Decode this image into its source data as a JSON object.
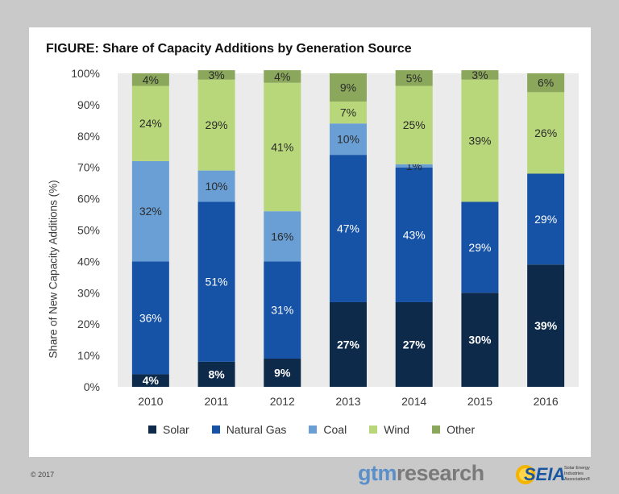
{
  "title": "FIGURE: Share of Capacity Additions by Generation Source",
  "copyright": "© 2017",
  "logos": {
    "gtm_part1": "gtm",
    "gtm_part2": "research",
    "seia": "SEIA",
    "seia_sub": "Solar Energy Industries Association®"
  },
  "colors": {
    "Solar": "#0e2a4a",
    "Natural Gas": "#1653a7",
    "Coal": "#6a9fd5",
    "Wind": "#b8d77a",
    "Other": "#8aa75c"
  },
  "chart_data": {
    "type": "bar",
    "stacked": true,
    "title": "FIGURE: Share of Capacity Additions by Generation Source",
    "xlabel": "",
    "ylabel": "Share of New Capacity Additions (%)",
    "ylim": [
      0,
      100
    ],
    "yticks": [
      "0%",
      "10%",
      "20%",
      "30%",
      "40%",
      "50%",
      "60%",
      "70%",
      "80%",
      "90%",
      "100%"
    ],
    "categories": [
      "2010",
      "2011",
      "2012",
      "2013",
      "2014",
      "2015",
      "2016"
    ],
    "legend_position": "bottom",
    "series": [
      {
        "name": "Solar",
        "values": [
          4,
          8,
          9,
          27,
          27,
          30,
          39
        ],
        "labels": [
          "4%",
          "8%",
          "9%",
          "27%",
          "27%",
          "30%",
          "39%"
        ]
      },
      {
        "name": "Natural Gas",
        "values": [
          36,
          51,
          31,
          47,
          43,
          29,
          29
        ],
        "labels": [
          "36%",
          "51%",
          "31%",
          "47%",
          "43%",
          "29%",
          "29%"
        ]
      },
      {
        "name": "Coal",
        "values": [
          32,
          10,
          16,
          10,
          1,
          0,
          0
        ],
        "labels": [
          "32%",
          "10%",
          "16%",
          "10%",
          "1%",
          "",
          ""
        ]
      },
      {
        "name": "Wind",
        "values": [
          24,
          29,
          41,
          7,
          25,
          39,
          26
        ],
        "labels": [
          "24%",
          "29%",
          "41%",
          "7%",
          "25%",
          "39%",
          "26%"
        ]
      },
      {
        "name": "Other",
        "values": [
          4,
          3,
          4,
          9,
          5,
          3,
          6
        ],
        "labels": [
          "4%",
          "3%",
          "4%",
          "9%",
          "5%",
          "3%",
          "6%"
        ]
      }
    ]
  }
}
